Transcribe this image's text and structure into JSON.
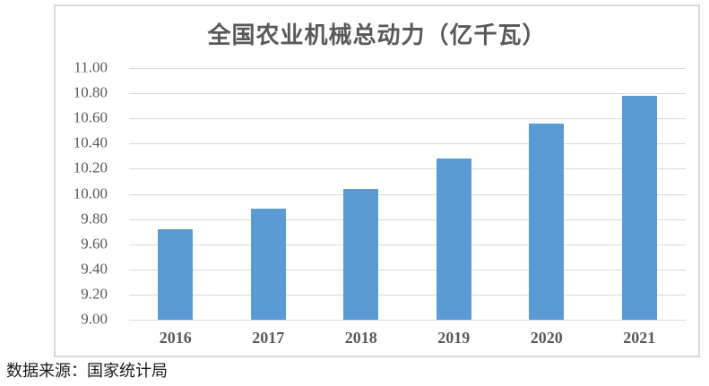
{
  "chart_data": {
    "type": "bar",
    "title": "全国农业机械总动力（亿千瓦）",
    "categories": [
      "2016",
      "2017",
      "2018",
      "2019",
      "2020",
      "2021"
    ],
    "values": [
      9.72,
      9.88,
      10.04,
      10.28,
      10.56,
      10.78
    ],
    "xlabel": "",
    "ylabel": "",
    "ylim": [
      9.0,
      11.0
    ],
    "ytick_step": 0.2,
    "ytick_labels": [
      "11.00",
      "10.80",
      "10.60",
      "10.40",
      "10.20",
      "10.00",
      "9.80",
      "9.60",
      "9.40",
      "9.20",
      "9.00"
    ],
    "grid": true,
    "legend": false,
    "bar_orientation": "vertical"
  },
  "source_note": "数据来源：国家统计局",
  "colors": {
    "bar_fill": "#5B9BD5",
    "gridline": "#D9D9D9",
    "chart_border": "#D9D9D9",
    "axis_text": "#595959",
    "title_text": "#595959",
    "source_text": "#1A1A1A",
    "background": "#FFFFFF"
  }
}
